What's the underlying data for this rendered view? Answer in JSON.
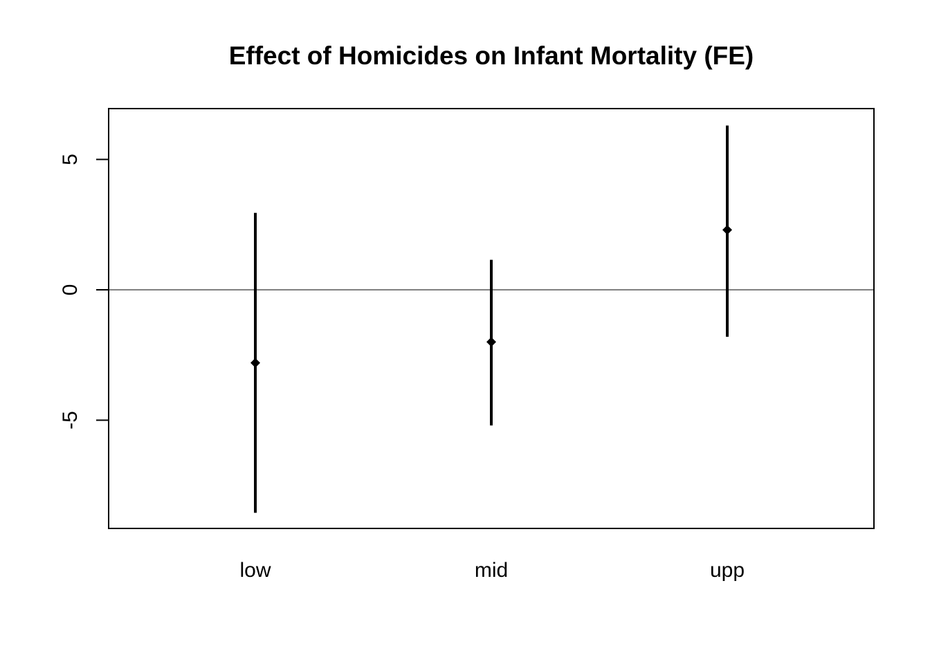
{
  "chart_data": {
    "type": "errorbar",
    "title": "Effect of Homicides on Infant Mortality (FE)",
    "xlabel": "",
    "ylabel": "",
    "categories": [
      "low",
      "mid",
      "upp"
    ],
    "points": [
      {
        "category": "low",
        "estimate": -2.8,
        "lower": -8.55,
        "upper": 2.95
      },
      {
        "category": "mid",
        "estimate": -2.0,
        "lower": -5.2,
        "upper": 1.15
      },
      {
        "category": "upp",
        "estimate": 2.3,
        "lower": -1.8,
        "upper": 6.3
      }
    ],
    "ylim": [
      -9.15,
      6.95
    ],
    "yticks": [
      -5,
      0,
      5
    ],
    "ytick_labels": [
      "-5",
      "0",
      "5"
    ],
    "reference_line": 0,
    "grid": false,
    "legend": "none",
    "colors": {
      "points": "#000000",
      "bars": "#000000",
      "reference_line": "#000000",
      "frame": "#000000"
    }
  }
}
